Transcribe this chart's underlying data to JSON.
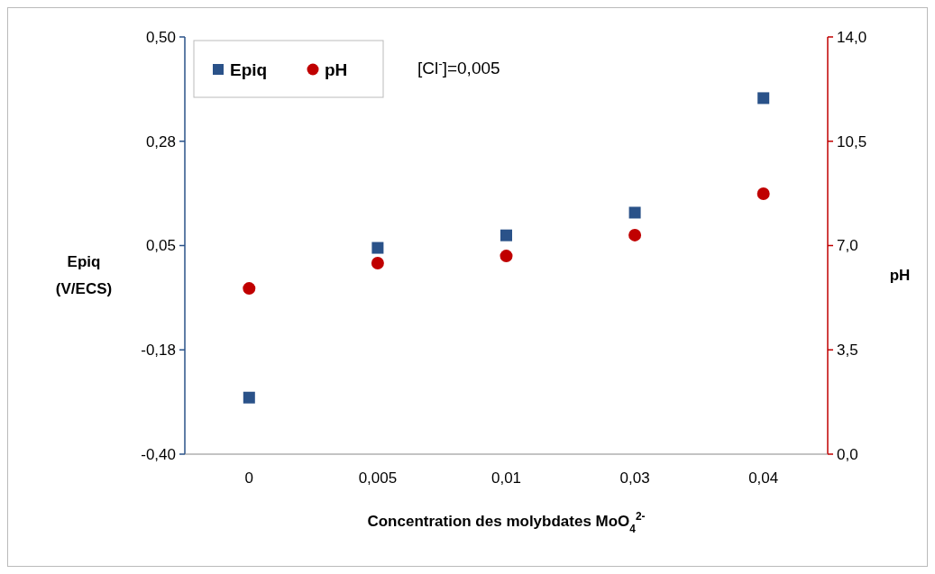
{
  "chart_data": {
    "type": "scatter",
    "categories": [
      "0",
      "0,005",
      "0,01",
      "0,03",
      "0,04"
    ],
    "xlabel": "Concentration des molybdates MoO$_{4}$$^{2-}$",
    "ylabel": "Epiq (V/ECS)",
    "y2label": "pH",
    "ylim": [
      -0.4,
      0.5
    ],
    "yticks": [
      {
        "value": 0.5,
        "label": "0,50"
      },
      {
        "value": 0.275,
        "label": "0,28"
      },
      {
        "value": 0.05,
        "label": "0,05"
      },
      {
        "value": -0.175,
        "label": "-0,18"
      },
      {
        "value": -0.4,
        "label": "-0,40"
      }
    ],
    "y2lim": [
      0,
      14
    ],
    "y2ticks": [
      {
        "value": 0,
        "label": "0,0"
      },
      {
        "value": 3.5,
        "label": "3,5"
      },
      {
        "value": 7,
        "label": "7,0"
      },
      {
        "value": 10.5,
        "label": "10,5"
      },
      {
        "value": 14,
        "label": "14,0"
      }
    ],
    "series": [
      {
        "name": "Epiq",
        "color": "#2a5289",
        "marker": "square",
        "values": [
          -0.278,
          0.045,
          0.072,
          0.121,
          0.368
        ]
      },
      {
        "name": "pH",
        "color": "#c00000",
        "marker": "circle",
        "axis": "y2",
        "values": [
          5.56,
          6.41,
          6.65,
          7.35,
          8.74
        ]
      }
    ],
    "annotations": [
      "[Cl$^{-}$]=0,005"
    ],
    "legend": "top left",
    "grid": false
  }
}
